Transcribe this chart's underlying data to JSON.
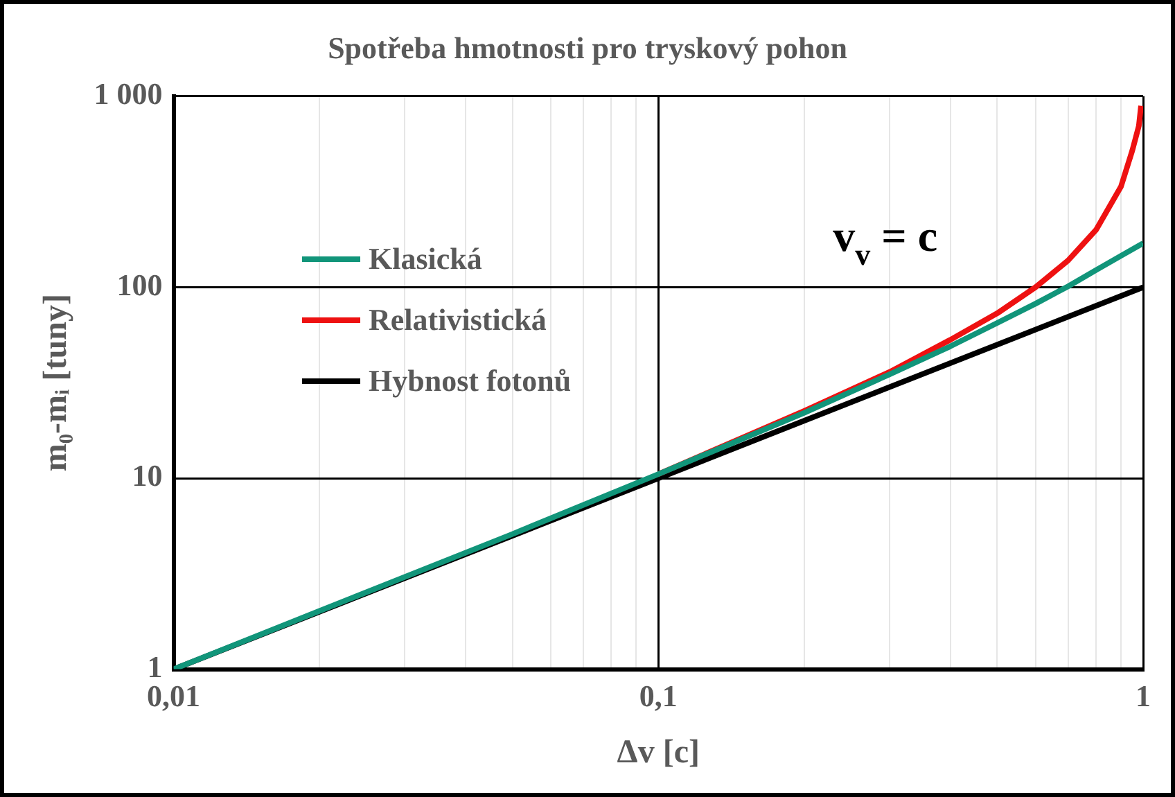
{
  "chart_data": {
    "type": "line",
    "title": "Spotřeba hmotnosti pro tryskový pohon",
    "xlabel": "Δv [c]",
    "ylabel": "m₀-mᵢ [tuny]",
    "log": "xy",
    "xlim": [
      0.01,
      1
    ],
    "xticks": [
      {
        "value": 0.01,
        "label": "0,01"
      },
      {
        "value": 0.02,
        "label": null
      },
      {
        "value": 0.03,
        "label": null
      },
      {
        "value": 0.04,
        "label": null
      },
      {
        "value": 0.05,
        "label": null
      },
      {
        "value": 0.06,
        "label": null
      },
      {
        "value": 0.07,
        "label": null
      },
      {
        "value": 0.08,
        "label": null
      },
      {
        "value": 0.09,
        "label": null
      },
      {
        "value": 0.1,
        "label": "0,1"
      },
      {
        "value": 0.2,
        "label": null
      },
      {
        "value": 0.3,
        "label": null
      },
      {
        "value": 0.4,
        "label": null
      },
      {
        "value": 0.5,
        "label": null
      },
      {
        "value": 0.6,
        "label": null
      },
      {
        "value": 0.7,
        "label": null
      },
      {
        "value": 0.8,
        "label": null
      },
      {
        "value": 0.9,
        "label": null
      },
      1
    ],
    "ylim": [
      1,
      1000
    ],
    "yticks": [
      1,
      10,
      100,
      {
        "value": 1000,
        "label": "1 000"
      }
    ],
    "grid": true,
    "legend": "left",
    "marker": "none",
    "line_style": "solid",
    "annotations": [
      "v$_{v}$ = c"
    ],
    "series": [
      {
        "name": "Klasická",
        "color": "#11957a",
        "x": [
          0.01,
          0.02,
          0.05,
          0.1,
          0.2,
          0.3,
          0.4,
          0.5,
          0.6,
          0.7,
          0.8,
          0.9,
          1
        ],
        "values": [
          1,
          2.02,
          5.1,
          10.5,
          22,
          35,
          49,
          65,
          82,
          101,
          123,
          146,
          170
        ]
      },
      {
        "name": "Relativistická",
        "color": "#ee1111",
        "x": [
          0.1,
          0.2,
          0.3,
          0.4,
          0.5,
          0.6,
          0.7,
          0.8,
          0.9,
          0.95,
          0.98,
          0.99
        ],
        "values": [
          10.5,
          22.5,
          36,
          53,
          73,
          100,
          138,
          200,
          336,
          520,
          700,
          890
        ]
      },
      {
        "name": "Hybnost fotonů",
        "color": "#000000",
        "x": [
          0.01,
          1
        ],
        "values": [
          1,
          100
        ]
      }
    ]
  }
}
